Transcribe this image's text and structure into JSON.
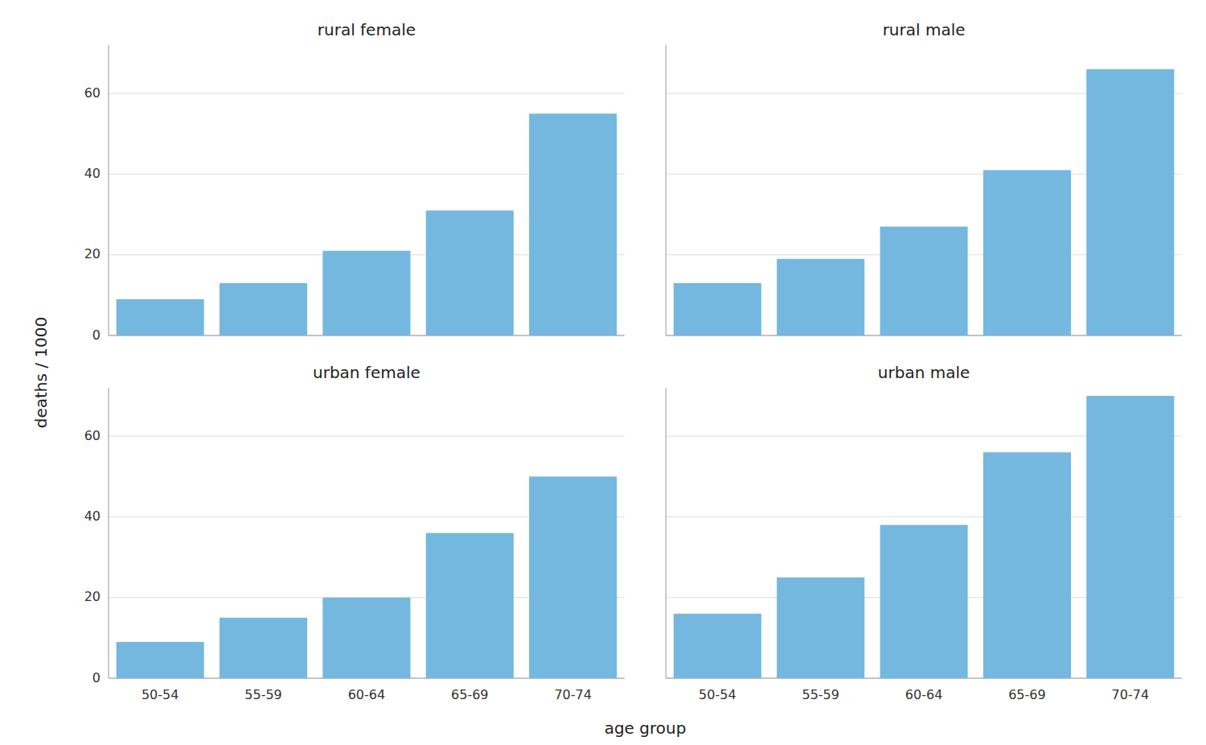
{
  "chart_data": [
    {
      "type": "bar",
      "title": "rural female",
      "categories": [
        "50-54",
        "55-59",
        "60-64",
        "65-69",
        "70-74"
      ],
      "values": [
        9.0,
        13.0,
        21.0,
        31.0,
        55.0
      ],
      "color": "#74b8e0",
      "ylim": [
        0,
        72
      ],
      "yticks": [
        0,
        20,
        40,
        60
      ],
      "grid": true,
      "tick_labels": "y",
      "xlabel": "age group",
      "ylabel": "deaths / 1000"
    },
    {
      "type": "bar",
      "title": "rural male",
      "categories": [
        "50-54",
        "55-59",
        "60-64",
        "65-69",
        "70-74"
      ],
      "values": [
        13.0,
        19.0,
        27.0,
        41.0,
        66.0
      ],
      "color": "#74b8e0",
      "ylim": [
        0,
        72
      ],
      "yticks": [
        0,
        20,
        40,
        60
      ],
      "grid": true,
      "tick_labels": false
    },
    {
      "type": "bar",
      "title": "urban female",
      "categories": [
        "50-54",
        "55-59",
        "60-64",
        "65-69",
        "70-74"
      ],
      "values": [
        9.0,
        15.0,
        20.0,
        36.0,
        50.0
      ],
      "color": "#74b8e0",
      "ylim": [
        0,
        72
      ],
      "yticks": [
        0,
        20,
        40,
        60
      ],
      "grid": true
    },
    {
      "type": "bar",
      "title": "urban male",
      "categories": [
        "50-54",
        "55-59",
        "60-64",
        "65-69",
        "70-74"
      ],
      "values": [
        16.0,
        25.0,
        38.0,
        56.0,
        70.0
      ],
      "color": "#74b8e0",
      "ylim": [
        0,
        72
      ],
      "yticks": [
        0,
        20,
        40,
        60
      ],
      "grid": true,
      "tick_labels": "x"
    }
  ]
}
